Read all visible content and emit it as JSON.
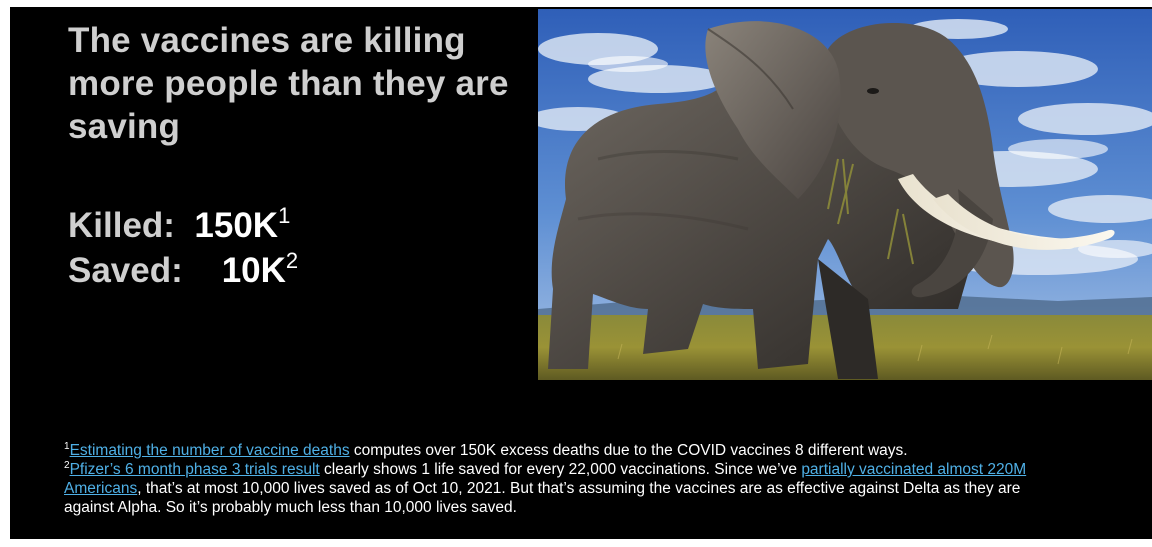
{
  "headline": "The vaccines are killing more people than they are saving",
  "stats": {
    "killed_label": "Killed:",
    "killed_value": "150K",
    "killed_ref": "1",
    "saved_label": "Saved:",
    "saved_value": "10K",
    "saved_ref": "2"
  },
  "photo": {
    "subject": "elephant-photo"
  },
  "footnotes": {
    "note1_ref": "1",
    "note1_link": "Estimating the number of vaccine deaths",
    "note1_text": " computes over 150K excess deaths due to the COVID vaccines 8 different ways.",
    "note2_ref": "2",
    "note2_link1": "Pfizer’s 6 month phase 3 trials result",
    "note2_text1": " clearly shows 1 life saved for every 22,000 vaccinations. Since we’ve ",
    "note2_link2": "partially vaccinated almost 220M Americans",
    "note2_text2": ", that’s at most 10,000 lives saved as of Oct 10, 2021. But that’s assuming the vaccines are as effective against Delta as they are against Alpha. So it’s probably much less than 10,000 lives saved."
  },
  "colors": {
    "background": "#000000",
    "headline": "#cfcfcf",
    "link": "#4fb0e6",
    "text": "#ffffff"
  }
}
